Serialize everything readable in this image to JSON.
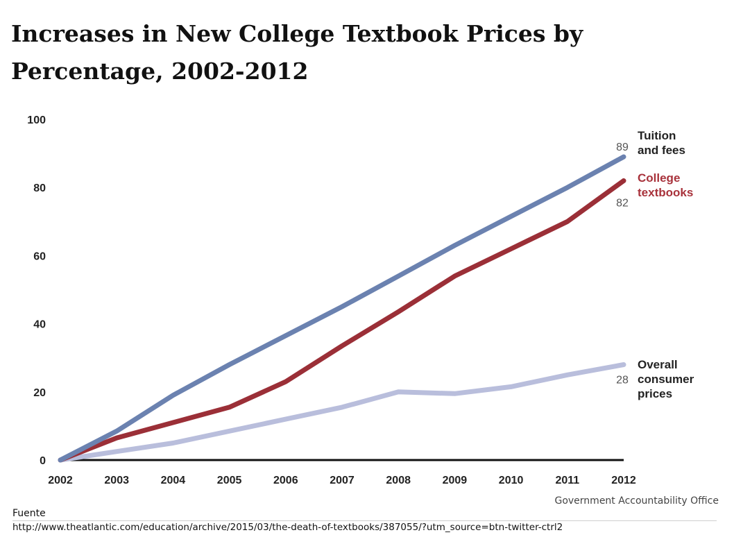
{
  "page": {
    "title": "Increases in New College Textbook Prices by Percentage, 2002-2012",
    "source_note": "Government Accountability Office",
    "fuente_label": "Fuente",
    "fuente_url": "http://www.theatlantic.com/education/archive/2015/03/the-death-of-textbooks/387055/?utm_source=btn-twitter-ctrl2"
  },
  "chart_data": {
    "type": "line",
    "title": "Increases in New College Textbook Prices by Percentage, 2002-2012",
    "xlabel": "",
    "ylabel": "",
    "x": [
      2002,
      2003,
      2004,
      2005,
      2006,
      2007,
      2008,
      2009,
      2010,
      2011,
      2012
    ],
    "x_tick_labels": [
      "2002",
      "2003",
      "2004",
      "2005",
      "2006",
      "2007",
      "2008",
      "2009",
      "2010",
      "2011",
      "2012"
    ],
    "y_ticks": [
      0,
      20,
      40,
      60,
      80,
      100
    ],
    "y_tick_labels": [
      "0",
      "20",
      "40",
      "60",
      "80",
      "100"
    ],
    "ylim": [
      0,
      100
    ],
    "grid": false,
    "legend": "inline labels at right end of each line",
    "series": [
      {
        "name": "Tuition and fees",
        "label_lines": [
          "Tuition",
          "and fees"
        ],
        "color": "#6b82b0",
        "label_color": "#222222",
        "values": [
          0,
          8.5,
          19,
          28,
          36.5,
          45,
          54,
          63,
          71.5,
          80,
          89
        ],
        "end_label": "89"
      },
      {
        "name": "College textbooks",
        "label_lines": [
          "College",
          "textbooks"
        ],
        "color": "#9b2f37",
        "label_color": "#a8323b",
        "values": [
          0,
          6.5,
          11,
          15.5,
          23,
          33.5,
          43.5,
          54,
          62,
          70,
          82
        ],
        "end_label": "82"
      },
      {
        "name": "Overall consumer prices",
        "label_lines": [
          "Overall",
          "consumer",
          "prices"
        ],
        "color": "#b9bedc",
        "label_color": "#222222",
        "values": [
          0,
          2.5,
          5,
          8.5,
          12,
          15.5,
          20,
          19.5,
          21.5,
          25,
          28
        ],
        "end_label": "28"
      }
    ]
  }
}
